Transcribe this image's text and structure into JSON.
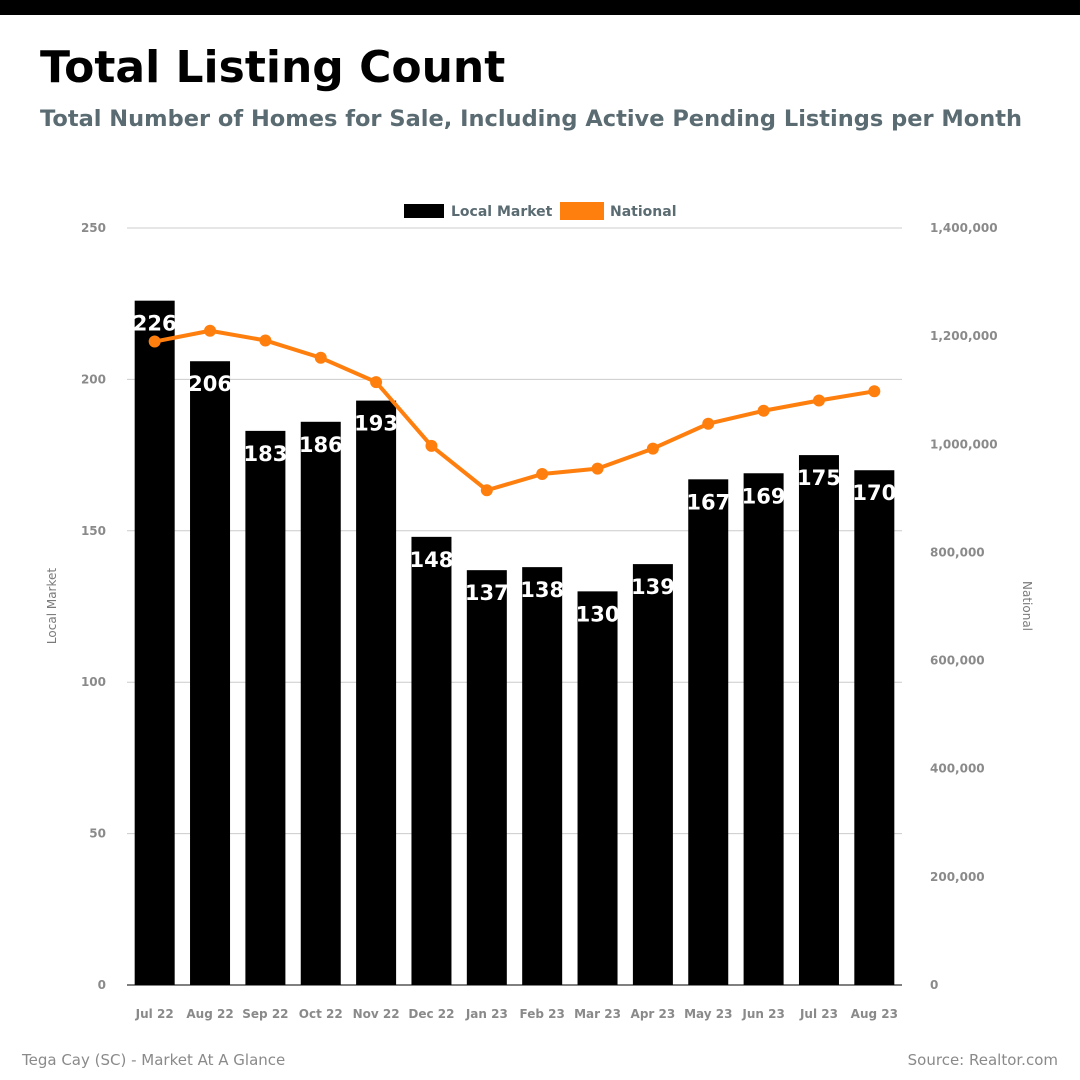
{
  "header": {
    "title": "Total Listing Count",
    "subtitle": "Total Number of Homes for Sale, Including Active Pending Listings per Month"
  },
  "footer": {
    "left": "Tega Cay (SC) - Market At A Glance",
    "right": "Source: Realtor.com"
  },
  "colors": {
    "bars": "#000000",
    "line": "#ff7f0e",
    "bar_label": "#ffffff",
    "grid": "#cccccc"
  },
  "chart_data": {
    "type": "bar",
    "categories": [
      "Jul 22",
      "Aug 22",
      "Sep 22",
      "Oct 22",
      "Nov 22",
      "Dec 22",
      "Jan 23",
      "Feb 23",
      "Mar 23",
      "Apr 23",
      "May 23",
      "Jun 23",
      "Jul 23",
      "Aug 23"
    ],
    "series": [
      {
        "name": "Local Market",
        "type": "bar",
        "axis": "left",
        "values": [
          226,
          206,
          183,
          186,
          193,
          148,
          137,
          138,
          130,
          139,
          167,
          169,
          175,
          170
        ]
      },
      {
        "name": "National",
        "type": "line",
        "axis": "right",
        "values": [
          1190000,
          1210000,
          1192000,
          1160000,
          1115000,
          997000,
          915000,
          945000,
          955000,
          992000,
          1038000,
          1062000,
          1081000,
          1098000
        ]
      }
    ],
    "ylabel_left": "Local Market",
    "ylabel_right": "National",
    "ylim_left": [
      0,
      250
    ],
    "ylim_right": [
      0,
      1400000
    ],
    "yticks_left": [
      "0",
      "50",
      "100",
      "150",
      "200",
      "250"
    ],
    "yticks_right": [
      "0",
      "200,000",
      "400,000",
      "600,000",
      "800,000",
      "1,000,000",
      "1,200,000",
      "1,400,000"
    ],
    "legend_position": "top-center",
    "grid": true
  }
}
